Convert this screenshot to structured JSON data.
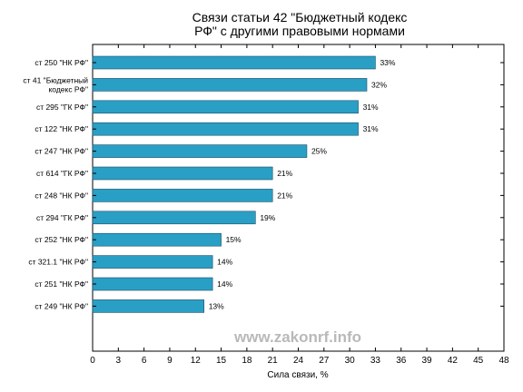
{
  "chart_data": {
    "type": "bar",
    "orientation": "horizontal",
    "title": [
      "Связи статьи 42 \"Бюджетный кодекс",
      "РФ\" с другими правовыми нормами"
    ],
    "xlabel": "Сила связи, %",
    "ylabel": "",
    "xlim": [
      0,
      48
    ],
    "xticks": [
      0,
      3,
      6,
      9,
      12,
      15,
      18,
      21,
      24,
      27,
      30,
      33,
      36,
      39,
      42,
      45,
      48
    ],
    "categories": [
      [
        "ст 250 \"НК РФ\""
      ],
      [
        "ст 41 \"Бюджетный",
        "кодекс РФ\""
      ],
      [
        "ст 295 \"ГК РФ\""
      ],
      [
        "ст 122 \"НК РФ\""
      ],
      [
        "ст 247 \"НК РФ\""
      ],
      [
        "ст 614 \"ГК РФ\""
      ],
      [
        "ст 248 \"НК РФ\""
      ],
      [
        "ст 294 \"ГК РФ\""
      ],
      [
        "ст 252 \"НК РФ\""
      ],
      [
        "ст 321.1 \"НК РФ\""
      ],
      [
        "ст 251 \"НК РФ\""
      ],
      [
        "ст 249 \"НК РФ\""
      ]
    ],
    "values": [
      33,
      32,
      31,
      31,
      25,
      21,
      21,
      19,
      15,
      14,
      14,
      13
    ],
    "value_labels": [
      "33%",
      "32%",
      "31%",
      "31%",
      "25%",
      "21%",
      "21%",
      "19%",
      "15%",
      "14%",
      "14%",
      "13%"
    ],
    "bar_color": "#2a9fc5",
    "grid": false
  },
  "watermark": "www.zakonrf.info"
}
